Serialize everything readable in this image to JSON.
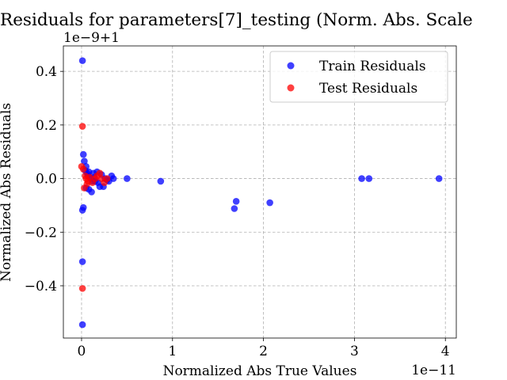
{
  "chart_data": {
    "type": "scatter",
    "title": "Residuals for parameters[7]_testing (Norm. Abs. Scale",
    "xlabel": "Normalized Abs True Values",
    "ylabel": "Normalized Abs Residuals",
    "x_offset_text": "1e−11",
    "y_offset_text": "1e−9+1",
    "x_unit_multiplier": "1e-11",
    "y_scale_note": "y value = 1 + (shown value) * 1e-9",
    "xlim": [
      -0.2,
      4.12
    ],
    "ylim": [
      -0.595,
      0.495
    ],
    "x_ticks": [
      {
        "value": 0,
        "label": "0"
      },
      {
        "value": 1,
        "label": "1"
      },
      {
        "value": 2,
        "label": "2"
      },
      {
        "value": 3,
        "label": "3"
      },
      {
        "value": 4,
        "label": "4"
      }
    ],
    "y_ticks": [
      {
        "value": 0.4,
        "label": "0.4"
      },
      {
        "value": 0.2,
        "label": "0.2"
      },
      {
        "value": 0.0,
        "label": "0.0"
      },
      {
        "value": -0.2,
        "label": "−0.2"
      },
      {
        "value": -0.4,
        "label": "−0.4"
      }
    ],
    "grid": true,
    "legend_position": "top-right",
    "series": [
      {
        "name": "Train Residuals",
        "color": "#0000ff",
        "points": [
          [
            0.01,
            0.44
          ],
          [
            0.01,
            -0.545
          ],
          [
            0.01,
            -0.31
          ],
          [
            0.01,
            -0.118
          ],
          [
            0.02,
            -0.108
          ],
          [
            0.02,
            0.09
          ],
          [
            0.03,
            0.065
          ],
          [
            0.05,
            0.045
          ],
          [
            0.04,
            0.03
          ],
          [
            0.06,
            0.02
          ],
          [
            0.07,
            0.01
          ],
          [
            0.08,
            0.025
          ],
          [
            0.1,
            0.0
          ],
          [
            0.12,
            -0.01
          ],
          [
            0.11,
            -0.05
          ],
          [
            0.13,
            0.02
          ],
          [
            0.15,
            -0.01
          ],
          [
            0.17,
            0.025
          ],
          [
            0.18,
            -0.015
          ],
          [
            0.2,
            -0.03
          ],
          [
            0.22,
            0.015
          ],
          [
            0.24,
            -0.03
          ],
          [
            0.26,
            0.0
          ],
          [
            0.28,
            -0.005
          ],
          [
            0.3,
            -0.01
          ],
          [
            0.33,
            0.01
          ],
          [
            0.35,
            0.0
          ],
          [
            0.08,
            -0.04
          ],
          [
            0.05,
            -0.035
          ],
          [
            0.14,
            0.005
          ],
          [
            0.5,
            0.0
          ],
          [
            0.87,
            -0.01
          ],
          [
            1.68,
            -0.112
          ],
          [
            1.7,
            -0.085
          ],
          [
            2.07,
            -0.09
          ],
          [
            3.08,
            0.0
          ],
          [
            3.16,
            0.0
          ],
          [
            3.93,
            0.0
          ]
        ]
      },
      {
        "name": "Test Residuals",
        "color": "#ff0000",
        "points": [
          [
            0.01,
            0.195
          ],
          [
            0.01,
            -0.41
          ],
          [
            0.0,
            0.045
          ],
          [
            0.02,
            0.035
          ],
          [
            0.03,
            -0.035
          ],
          [
            0.05,
            0.0
          ],
          [
            0.07,
            -0.01
          ],
          [
            0.09,
            0.005
          ],
          [
            0.12,
            -0.015
          ],
          [
            0.15,
            0.0
          ],
          [
            0.17,
            0.01
          ],
          [
            0.2,
            0.02
          ],
          [
            0.22,
            0.0
          ],
          [
            0.25,
            -0.015
          ],
          [
            0.28,
            0.0
          ],
          [
            0.04,
            0.01
          ],
          [
            0.06,
            -0.02
          ]
        ]
      }
    ]
  }
}
